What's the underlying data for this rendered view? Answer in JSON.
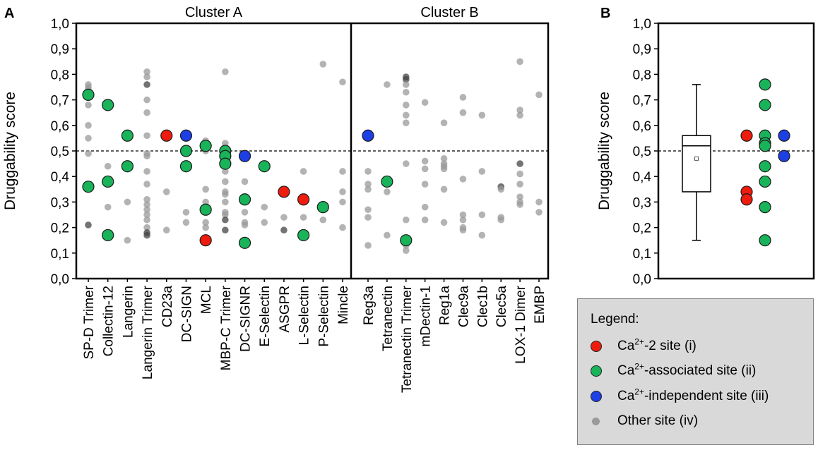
{
  "colors": {
    "ca2": "#ee1c0e",
    "associated": "#19b35a",
    "independent": "#1c3fe6",
    "other": "#9a9a9a",
    "other_dark": "#444444"
  },
  "chart_data": [
    {
      "type": "scatter",
      "panel_label": "A",
      "ylabel": "Druggability score",
      "ylim": [
        0.0,
        1.0
      ],
      "ytick_labels": [
        "0,0",
        "0,1",
        "0,2",
        "0,3",
        "0,4",
        "0,5",
        "0,6",
        "0,7",
        "0,8",
        "0,9",
        "1,0"
      ],
      "threshold": 0.5,
      "clusters": [
        {
          "name": "Cluster A",
          "categories": [
            "SP-D Trimer",
            "Collectin-12",
            "Langerin",
            "Langerin Trimer",
            "CD23a",
            "DC-SIGN",
            "MCL",
            "MBP-C Trimer",
            "DC-SIGNR",
            "E-Selectin",
            "ASGPR",
            "L-Selectin",
            "P-Selectin",
            "Mincle"
          ]
        },
        {
          "name": "Cluster B",
          "categories": [
            "Reg3a",
            "Tetranectin",
            "Tetranectin Trimer",
            "mDectin-1",
            "Reg1a",
            "Clec9a",
            "Clec1b",
            "Clec5a",
            "LOX-1 Dimer",
            "EMBP"
          ]
        }
      ],
      "series": [
        {
          "name": "Ca2+-2 site (i)",
          "color_key": "ca2",
          "points": [
            {
              "cat": "CD23a",
              "y": 0.56
            },
            {
              "cat": "MCL",
              "y": 0.15
            },
            {
              "cat": "ASGPR",
              "y": 0.34
            },
            {
              "cat": "L-Selectin",
              "y": 0.31
            }
          ]
        },
        {
          "name": "Ca2+-associated site (ii)",
          "color_key": "associated",
          "points": [
            {
              "cat": "SP-D Trimer",
              "y": 0.72
            },
            {
              "cat": "SP-D Trimer",
              "y": 0.36
            },
            {
              "cat": "Collectin-12",
              "y": 0.68
            },
            {
              "cat": "Collectin-12",
              "y": 0.38
            },
            {
              "cat": "Collectin-12",
              "y": 0.17
            },
            {
              "cat": "Langerin",
              "y": 0.56
            },
            {
              "cat": "Langerin",
              "y": 0.44
            },
            {
              "cat": "DC-SIGN",
              "y": 0.5
            },
            {
              "cat": "DC-SIGN",
              "y": 0.44
            },
            {
              "cat": "MCL",
              "y": 0.52
            },
            {
              "cat": "MCL",
              "y": 0.27
            },
            {
              "cat": "MBP-C Trimer",
              "y": 0.5
            },
            {
              "cat": "MBP-C Trimer",
              "y": 0.48
            },
            {
              "cat": "MBP-C Trimer",
              "y": 0.45
            },
            {
              "cat": "DC-SIGNR",
              "y": 0.31
            },
            {
              "cat": "DC-SIGNR",
              "y": 0.14
            },
            {
              "cat": "E-Selectin",
              "y": 0.44
            },
            {
              "cat": "L-Selectin",
              "y": 0.17
            },
            {
              "cat": "P-Selectin",
              "y": 0.28
            },
            {
              "cat": "Tetranectin",
              "y": 0.38
            },
            {
              "cat": "Tetranectin Trimer",
              "y": 0.15
            }
          ]
        },
        {
          "name": "Ca2+-independent site (iii)",
          "color_key": "independent",
          "points": [
            {
              "cat": "DC-SIGN",
              "y": 0.56
            },
            {
              "cat": "DC-SIGNR",
              "y": 0.48
            },
            {
              "cat": "Reg3a",
              "y": 0.56
            }
          ]
        },
        {
          "name": "Other site (iv)",
          "color_key": "other",
          "points": [
            {
              "cat": "SP-D Trimer",
              "y": 0.76
            },
            {
              "cat": "SP-D Trimer",
              "y": 0.75
            },
            {
              "cat": "SP-D Trimer",
              "y": 0.74
            },
            {
              "cat": "SP-D Trimer",
              "y": 0.68
            },
            {
              "cat": "SP-D Trimer",
              "y": 0.6
            },
            {
              "cat": "SP-D Trimer",
              "y": 0.55
            },
            {
              "cat": "SP-D Trimer",
              "y": 0.49
            },
            {
              "cat": "SP-D Trimer",
              "y": 0.21,
              "dark": true
            },
            {
              "cat": "Collectin-12",
              "y": 0.44
            },
            {
              "cat": "Collectin-12",
              "y": 0.28
            },
            {
              "cat": "Langerin",
              "y": 0.3
            },
            {
              "cat": "Langerin",
              "y": 0.15
            },
            {
              "cat": "Langerin Trimer",
              "y": 0.81
            },
            {
              "cat": "Langerin Trimer",
              "y": 0.79
            },
            {
              "cat": "Langerin Trimer",
              "y": 0.76,
              "dark": true
            },
            {
              "cat": "Langerin Trimer",
              "y": 0.7
            },
            {
              "cat": "Langerin Trimer",
              "y": 0.65
            },
            {
              "cat": "Langerin Trimer",
              "y": 0.56
            },
            {
              "cat": "Langerin Trimer",
              "y": 0.49
            },
            {
              "cat": "Langerin Trimer",
              "y": 0.48
            },
            {
              "cat": "Langerin Trimer",
              "y": 0.42
            },
            {
              "cat": "Langerin Trimer",
              "y": 0.37
            },
            {
              "cat": "Langerin Trimer",
              "y": 0.31
            },
            {
              "cat": "Langerin Trimer",
              "y": 0.29
            },
            {
              "cat": "Langerin Trimer",
              "y": 0.27
            },
            {
              "cat": "Langerin Trimer",
              "y": 0.25
            },
            {
              "cat": "Langerin Trimer",
              "y": 0.23
            },
            {
              "cat": "Langerin Trimer",
              "y": 0.2
            },
            {
              "cat": "Langerin Trimer",
              "y": 0.18,
              "dark": true
            },
            {
              "cat": "Langerin Trimer",
              "y": 0.17,
              "dark": true
            },
            {
              "cat": "CD23a",
              "y": 0.34
            },
            {
              "cat": "CD23a",
              "y": 0.19
            },
            {
              "cat": "DC-SIGN",
              "y": 0.26
            },
            {
              "cat": "DC-SIGN",
              "y": 0.22
            },
            {
              "cat": "MCL",
              "y": 0.54
            },
            {
              "cat": "MCL",
              "y": 0.5
            },
            {
              "cat": "MCL",
              "y": 0.35
            },
            {
              "cat": "MCL",
              "y": 0.3
            },
            {
              "cat": "MCL",
              "y": 0.22
            },
            {
              "cat": "MCL",
              "y": 0.2
            },
            {
              "cat": "MBP-C Trimer",
              "y": 0.81
            },
            {
              "cat": "MBP-C Trimer",
              "y": 0.53
            },
            {
              "cat": "MBP-C Trimer",
              "y": 0.42
            },
            {
              "cat": "MBP-C Trimer",
              "y": 0.38
            },
            {
              "cat": "MBP-C Trimer",
              "y": 0.34
            },
            {
              "cat": "MBP-C Trimer",
              "y": 0.33
            },
            {
              "cat": "MBP-C Trimer",
              "y": 0.3
            },
            {
              "cat": "MBP-C Trimer",
              "y": 0.26
            },
            {
              "cat": "MBP-C Trimer",
              "y": 0.25
            },
            {
              "cat": "MBP-C Trimer",
              "y": 0.23,
              "dark": true
            },
            {
              "cat": "MBP-C Trimer",
              "y": 0.19,
              "dark": true
            },
            {
              "cat": "DC-SIGNR",
              "y": 0.38
            },
            {
              "cat": "DC-SIGNR",
              "y": 0.26
            },
            {
              "cat": "DC-SIGNR",
              "y": 0.22
            },
            {
              "cat": "DC-SIGNR",
              "y": 0.21
            },
            {
              "cat": "E-Selectin",
              "y": 0.28
            },
            {
              "cat": "E-Selectin",
              "y": 0.22
            },
            {
              "cat": "ASGPR",
              "y": 0.24
            },
            {
              "cat": "ASGPR",
              "y": 0.19,
              "dark": true
            },
            {
              "cat": "L-Selectin",
              "y": 0.42
            },
            {
              "cat": "L-Selectin",
              "y": 0.24
            },
            {
              "cat": "P-Selectin",
              "y": 0.84
            },
            {
              "cat": "P-Selectin",
              "y": 0.23
            },
            {
              "cat": "Mincle",
              "y": 0.77
            },
            {
              "cat": "Mincle",
              "y": 0.42
            },
            {
              "cat": "Mincle",
              "y": 0.34
            },
            {
              "cat": "Mincle",
              "y": 0.3
            },
            {
              "cat": "Mincle",
              "y": 0.2
            },
            {
              "cat": "Reg3a",
              "y": 0.42
            },
            {
              "cat": "Reg3a",
              "y": 0.37
            },
            {
              "cat": "Reg3a",
              "y": 0.35
            },
            {
              "cat": "Reg3a",
              "y": 0.27
            },
            {
              "cat": "Reg3a",
              "y": 0.24
            },
            {
              "cat": "Reg3a",
              "y": 0.13
            },
            {
              "cat": "Tetranectin",
              "y": 0.76
            },
            {
              "cat": "Tetranectin",
              "y": 0.34
            },
            {
              "cat": "Tetranectin",
              "y": 0.17
            },
            {
              "cat": "Tetranectin Trimer",
              "y": 0.79,
              "dark": true
            },
            {
              "cat": "Tetranectin Trimer",
              "y": 0.78,
              "dark": true
            },
            {
              "cat": "Tetranectin Trimer",
              "y": 0.76
            },
            {
              "cat": "Tetranectin Trimer",
              "y": 0.73
            },
            {
              "cat": "Tetranectin Trimer",
              "y": 0.68
            },
            {
              "cat": "Tetranectin Trimer",
              "y": 0.64
            },
            {
              "cat": "Tetranectin Trimer",
              "y": 0.61
            },
            {
              "cat": "Tetranectin Trimer",
              "y": 0.45
            },
            {
              "cat": "Tetranectin Trimer",
              "y": 0.23
            },
            {
              "cat": "Tetranectin Trimer",
              "y": 0.13
            },
            {
              "cat": "Tetranectin Trimer",
              "y": 0.11
            },
            {
              "cat": "mDectin-1",
              "y": 0.69
            },
            {
              "cat": "mDectin-1",
              "y": 0.46
            },
            {
              "cat": "mDectin-1",
              "y": 0.43
            },
            {
              "cat": "mDectin-1",
              "y": 0.37
            },
            {
              "cat": "mDectin-1",
              "y": 0.28
            },
            {
              "cat": "mDectin-1",
              "y": 0.23
            },
            {
              "cat": "Reg1a",
              "y": 0.61
            },
            {
              "cat": "Reg1a",
              "y": 0.47
            },
            {
              "cat": "Reg1a",
              "y": 0.45
            },
            {
              "cat": "Reg1a",
              "y": 0.44
            },
            {
              "cat": "Reg1a",
              "y": 0.43
            },
            {
              "cat": "Reg1a",
              "y": 0.35
            },
            {
              "cat": "Reg1a",
              "y": 0.22
            },
            {
              "cat": "Clec9a",
              "y": 0.71
            },
            {
              "cat": "Clec9a",
              "y": 0.65
            },
            {
              "cat": "Clec9a",
              "y": 0.39
            },
            {
              "cat": "Clec9a",
              "y": 0.25
            },
            {
              "cat": "Clec9a",
              "y": 0.23
            },
            {
              "cat": "Clec9a",
              "y": 0.2
            },
            {
              "cat": "Clec9a",
              "y": 0.19
            },
            {
              "cat": "Clec1b",
              "y": 0.64
            },
            {
              "cat": "Clec1b",
              "y": 0.42
            },
            {
              "cat": "Clec1b",
              "y": 0.25
            },
            {
              "cat": "Clec1b",
              "y": 0.17
            },
            {
              "cat": "Clec5a",
              "y": 0.36,
              "dark": true
            },
            {
              "cat": "Clec5a",
              "y": 0.35
            },
            {
              "cat": "Clec5a",
              "y": 0.24
            },
            {
              "cat": "Clec5a",
              "y": 0.23
            },
            {
              "cat": "LOX-1 Dimer",
              "y": 0.85
            },
            {
              "cat": "LOX-1 Dimer",
              "y": 0.66
            },
            {
              "cat": "LOX-1 Dimer",
              "y": 0.64
            },
            {
              "cat": "LOX-1 Dimer",
              "y": 0.45,
              "dark": true
            },
            {
              "cat": "LOX-1 Dimer",
              "y": 0.41
            },
            {
              "cat": "LOX-1 Dimer",
              "y": 0.37
            },
            {
              "cat": "LOX-1 Dimer",
              "y": 0.32
            },
            {
              "cat": "LOX-1 Dimer",
              "y": 0.3
            },
            {
              "cat": "LOX-1 Dimer",
              "y": 0.29
            },
            {
              "cat": "EMBP",
              "y": 0.72
            },
            {
              "cat": "EMBP",
              "y": 0.3
            },
            {
              "cat": "EMBP",
              "y": 0.26
            }
          ]
        }
      ]
    },
    {
      "type": "scatter",
      "panel_label": "B",
      "ylabel": "Druggability score",
      "ylim": [
        0.0,
        1.0
      ],
      "ytick_labels": [
        "0,0",
        "0,1",
        "0,2",
        "0,3",
        "0,4",
        "0,5",
        "0,6",
        "0,7",
        "0,8",
        "0,9",
        "1,0"
      ],
      "threshold": 0.5,
      "boxplot": {
        "whisker_low": 0.15,
        "q1": 0.34,
        "median": 0.52,
        "q3": 0.56,
        "whisker_high": 0.76,
        "mean": 0.47
      },
      "series": [
        {
          "name": "Ca2+-2 site (i)",
          "color_key": "ca2",
          "column": 0,
          "values": [
            0.56,
            0.34,
            0.31
          ]
        },
        {
          "name": "Ca2+-associated site (ii)",
          "color_key": "associated",
          "column": 1,
          "values": [
            0.76,
            0.68,
            0.56,
            0.53,
            0.52,
            0.44,
            0.38,
            0.28,
            0.15
          ]
        },
        {
          "name": "Ca2+-independent site (iii)",
          "color_key": "independent",
          "column": 2,
          "values": [
            0.56,
            0.48
          ]
        }
      ]
    }
  ],
  "legend": {
    "title": "Legend:",
    "items": [
      {
        "pre": "Ca",
        "sup": "2+",
        "post": "-2 site (i)",
        "color_key": "ca2"
      },
      {
        "pre": "Ca",
        "sup": "2+",
        "post": "-associated site (ii)",
        "color_key": "associated"
      },
      {
        "pre": "Ca",
        "sup": "2+",
        "post": "-independent site (iii)",
        "color_key": "independent"
      },
      {
        "pre": "",
        "sup": "",
        "post": "Other site (iv)",
        "color_key": "other"
      }
    ]
  }
}
